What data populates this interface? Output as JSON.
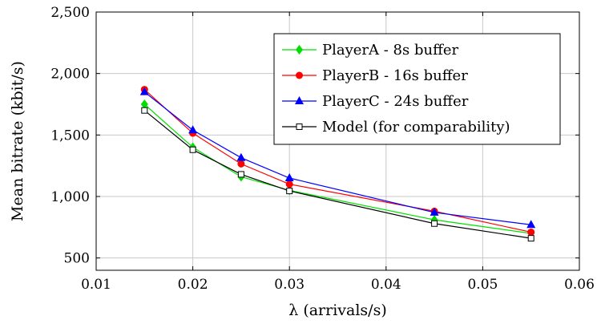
{
  "chart_data": {
    "type": "line",
    "xlabel": "λ (arrivals/s)",
    "ylabel": "Mean bitrate (kbit/s)",
    "xlim": [
      0.01,
      0.06
    ],
    "ylim": [
      400,
      2500
    ],
    "xticks": [
      0.01,
      0.02,
      0.03,
      0.04,
      0.05,
      0.06
    ],
    "xtick_labels": [
      "0.01",
      "0.02",
      "0.03",
      "0.04",
      "0.05",
      "0.06"
    ],
    "yticks": [
      500,
      1000,
      1500,
      2000,
      2500
    ],
    "ytick_labels": [
      "500",
      "1,000",
      "1,500",
      "2,000",
      "2,500"
    ],
    "grid": true,
    "legend_position": "top-right",
    "x": [
      0.015,
      0.02,
      0.025,
      0.03,
      0.045,
      0.055
    ],
    "series": [
      {
        "name": "PlayerA - 8s buffer",
        "color": "#00e000",
        "marker": "diamond",
        "values": [
          1750,
          1400,
          1160,
          1050,
          810,
          700
        ]
      },
      {
        "name": "PlayerB - 16s buffer",
        "color": "#ff0000",
        "marker": "circle",
        "values": [
          1870,
          1515,
          1265,
          1100,
          880,
          710
        ]
      },
      {
        "name": "PlayerC - 24s buffer",
        "color": "#0000ff",
        "marker": "triangle",
        "values": [
          1850,
          1540,
          1315,
          1150,
          870,
          770
        ]
      },
      {
        "name": "Model (for comparability)",
        "color": "#000000",
        "marker": "square-open",
        "values": [
          1700,
          1380,
          1180,
          1045,
          780,
          660
        ]
      }
    ]
  }
}
